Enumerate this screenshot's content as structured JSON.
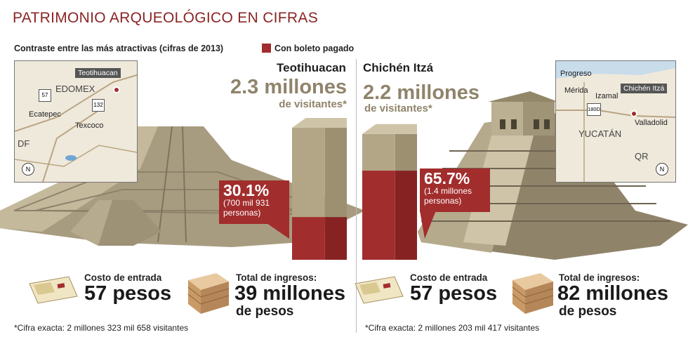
{
  "header": {
    "title": "PATRIMONIO ARQUEOLÓGICO EN CIFRAS",
    "subtitle": "Contraste entre las más atractivas (cifras de 2013)",
    "legend_label": "Con boleto pagado"
  },
  "colors": {
    "title": "#8b2424",
    "paid": "#a22d2d",
    "bar": "#b3a687",
    "visits": "#8f846b"
  },
  "sites": [
    {
      "name": "Teotihuacan",
      "visitors_big": "2.3 millones",
      "visitors_small": "de visitantes*",
      "paid_pct": "30.1%",
      "paid_note": "(700 mil 931 personas)",
      "cost_label": "Costo de entrada",
      "cost_value": "57 pesos",
      "income_label": "Total de ingresos:",
      "income_value": "39 millones",
      "income_unit": "de pesos",
      "footnote": "*Cifra exacta: 2 millones 323 mil 658 visitantes",
      "map": {
        "tag": "Teotihuacan",
        "state": "EDOMEX",
        "city1": "Ecatepec",
        "city2": "Texcoco",
        "region": "DF",
        "shield1": "57",
        "shield2": "132",
        "compass": "N"
      }
    },
    {
      "name": "Chichén Itzá",
      "visitors_big": "2.2 millones",
      "visitors_small": "de visitantes*",
      "paid_pct": "65.7%",
      "paid_note": "(1.4 millones personas)",
      "cost_label": "Costo de entrada",
      "cost_value": "57 pesos",
      "income_label": "Total de ingresos:",
      "income_value": "82 millones",
      "income_unit": "de pesos",
      "footnote": "*Cifra exacta: 2 millones 203 mil 417 visitantes",
      "map": {
        "tag": "Chichén Itzá",
        "state": "YUCATÁN",
        "city1": "Progreso",
        "city2": "Mérida",
        "city3": "Izamal",
        "city4": "Valladolid",
        "region": "QR",
        "shield1": "180D",
        "compass": "N"
      }
    }
  ],
  "chart_data": {
    "type": "bar",
    "categories": [
      "Teotihuacan",
      "Chichén Itzá"
    ],
    "series": [
      {
        "name": "Con boleto pagado",
        "values": [
          30.1,
          65.7
        ]
      }
    ],
    "total_visitors_millions": [
      2.3,
      2.2
    ]
  }
}
